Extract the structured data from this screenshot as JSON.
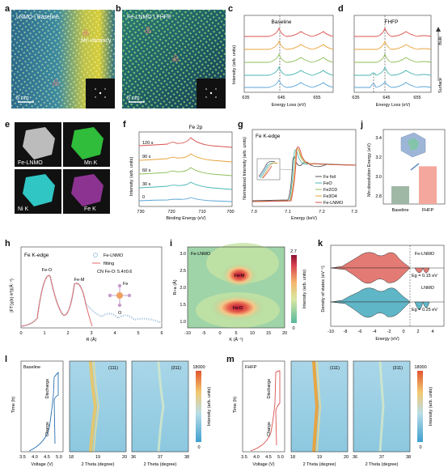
{
  "panels": {
    "a": {
      "label": "a",
      "caption": "LNMO | Baseline",
      "annotation": "Mn vacancy",
      "scale": "5 nm"
    },
    "b": {
      "label": "b",
      "caption": "Fe-LNMO | FHFP",
      "scale": "5 nm"
    },
    "c": {
      "label": "c",
      "title": "Baseline",
      "ylabel": "Intensity (arb. units)",
      "xlabel": "Energy Loss (eV)",
      "xticks": [
        "635",
        "645",
        "655"
      ]
    },
    "d": {
      "label": "d",
      "title": "FHFP",
      "xlabel": "Energy Loss (eV)",
      "xticks": [
        "635",
        "645",
        "655"
      ],
      "bulk": "Bulk",
      "surface": "Surface"
    },
    "e": {
      "label": "e",
      "maps": [
        "Fe-LNMO",
        "Mn K",
        "Ni K",
        "Fe K"
      ]
    },
    "f": {
      "label": "f",
      "title": "Fe 2p",
      "ylabel": "Intensity (arb. units)",
      "xlabel": "Binding Energy (eV)",
      "xticks": [
        "730",
        "720",
        "710",
        "700"
      ],
      "times": [
        "120 s",
        "90 s",
        "60 s",
        "30 s",
        "0"
      ]
    },
    "g": {
      "label": "g",
      "title": "Fe K-edge",
      "ylabel": "Normalized Intensity (arb. units)",
      "xlabel": "Energy (keV)",
      "xticks": [
        "7.0",
        "7.1",
        "7.2",
        "7.3"
      ],
      "legend": [
        "Fe foil",
        "FeO",
        "Fe2O3",
        "Fe3O4",
        "Fe-LNMO"
      ]
    },
    "j": {
      "label": "j",
      "ylabel": "Mn dissolution Energy (eV)",
      "yticks": [
        "3.4",
        "3.2",
        "3.0",
        "2.8"
      ],
      "categories": [
        "Baseline",
        "FHFP"
      ]
    },
    "h": {
      "label": "h",
      "title": "Fe K-edge",
      "ylabel": "|FT(χ(k)·k³)|(Å⁻⁴)",
      "xlabel": "R (Å)",
      "xticks": [
        "0",
        "1",
        "2",
        "3",
        "4",
        "5",
        "6"
      ],
      "legend": [
        "Fe-LNMO",
        "fitting"
      ],
      "cn": "CN Fe-O: 5.4±0.6",
      "peaks": [
        "Fe-O",
        "Fe-M"
      ],
      "motif_center": "Fe",
      "motif_ligand": "O"
    },
    "i": {
      "label": "i",
      "title": "Fe-LNMO",
      "ylabel": "R+a (Å)",
      "xlabel": "K (Å⁻¹)",
      "xticks": [
        "-10",
        "-5",
        "0",
        "5",
        "10",
        "15",
        "20"
      ],
      "yticks": [
        "3.0",
        "2.5",
        "2.0",
        "1.5",
        "1.0"
      ],
      "cbar_label": "Intensity (arb. units)",
      "cbar_max": "2.7",
      "cbar_min": "0",
      "peaks": [
        "Fe-M",
        "Fe-O"
      ]
    },
    "k": {
      "label": "k",
      "ylabel": "Density of states (eV⁻¹)",
      "xlabel": "Energy (eV)",
      "xticks": [
        "-10",
        "-8",
        "-6",
        "-4",
        "-2",
        "0",
        "2",
        "4"
      ],
      "series": [
        "Fe-LNMO",
        "LNMO"
      ],
      "gaps": [
        "Eg = 0.15 eV",
        "Eg = 0.25 eV"
      ]
    },
    "l": {
      "label": "l",
      "title": "Baseline",
      "ylabel": "Time (h)",
      "xlabel1": "Voltage (V)",
      "xticks1": [
        "3.5",
        "4.0",
        "4.5",
        "5.0"
      ],
      "discharge": "Discharge",
      "charge": "Charge",
      "peak1": "(111)",
      "peak2": "(311)",
      "xlabel2": "2 Theta (degree)",
      "xticks2": [
        "18",
        "19",
        "20"
      ],
      "xticks3": [
        "36",
        "37",
        "38"
      ],
      "cbar_label": "Intensity (arb. units)",
      "cbar_max": "18000",
      "cbar_min": "0"
    },
    "m": {
      "label": "m",
      "title": "FHFP",
      "ylabel": "Time (h)",
      "xlabel1": "Voltage (V)",
      "xticks1": [
        "3.5",
        "4.0",
        "4.5",
        "5.0"
      ],
      "discharge": "Discharge",
      "charge": "Charge",
      "peak1": "(111)",
      "peak2": "(311)",
      "xlabel2": "2 Theta (degree)",
      "xticks2": [
        "18",
        "19",
        "20"
      ],
      "xticks3": [
        "36",
        "37",
        "38"
      ],
      "cbar_label": "Intensity (arb. units)",
      "cbar_max": "18000",
      "cbar_min": "0"
    }
  },
  "chart_data": [
    {
      "type": "line",
      "title": "Baseline",
      "xlabel": "Energy Loss (eV)",
      "ylabel": "Intensity (arb. units)",
      "note": "EELS Mn L-edge spectra, 5 stacked curves surface to bulk",
      "xlim": [
        635,
        660
      ]
    },
    {
      "type": "line",
      "title": "FHFP",
      "xlabel": "Energy Loss (eV)",
      "note": "EELS Mn L-edge spectra, 5 stacked curves surface to bulk",
      "xlim": [
        635,
        660
      ]
    },
    {
      "type": "line",
      "title": "Fe 2p",
      "xlabel": "Binding Energy (eV)",
      "ylabel": "Intensity (arb. units)",
      "series": [
        {
          "name": "120 s"
        },
        {
          "name": "90 s"
        },
        {
          "name": "60 s"
        },
        {
          "name": "30 s"
        },
        {
          "name": "0"
        }
      ],
      "xlim": [
        730,
        700
      ]
    },
    {
      "type": "line",
      "title": "Fe K-edge",
      "xlabel": "Energy (keV)",
      "ylabel": "Normalized Intensity (arb. units)",
      "series": [
        {
          "name": "Fe foil"
        },
        {
          "name": "FeO"
        },
        {
          "name": "Fe2O3"
        },
        {
          "name": "Fe3O4"
        },
        {
          "name": "Fe-LNMO"
        }
      ],
      "xlim": [
        7.0,
        7.3
      ]
    },
    {
      "type": "bar",
      "categories": [
        "Baseline",
        "FHFP"
      ],
      "values": [
        2.88,
        3.08
      ],
      "ylabel": "Mn dissolution Energy (eV)",
      "ylim": [
        2.7,
        3.45
      ]
    },
    {
      "type": "line",
      "title": "Fe K-edge",
      "xlabel": "R (Å)",
      "ylabel": "|FT(χ(k)·k³)|(Å⁻⁴)",
      "series": [
        {
          "name": "Fe-LNMO"
        },
        {
          "name": "fitting"
        }
      ],
      "xlim": [
        0,
        6
      ]
    },
    {
      "type": "heatmap",
      "title": "Fe-LNMO",
      "xlabel": "K (Å⁻¹)",
      "ylabel": "R+a (Å)",
      "xlim": [
        -10,
        20
      ],
      "ylim": [
        1.0,
        3.0
      ],
      "zlim": [
        0,
        2.7
      ]
    },
    {
      "type": "area",
      "xlabel": "Energy (eV)",
      "ylabel": "Density of states (eV⁻¹)",
      "series": [
        {
          "name": "Fe-LNMO"
        },
        {
          "name": "LNMO"
        }
      ],
      "xlim": [
        -10,
        5
      ]
    },
    {
      "type": "heatmap",
      "title": "Baseline",
      "xlabel": "2 Theta (degree)",
      "ylabel": "Time (h)",
      "zlim": [
        0,
        18000
      ]
    },
    {
      "type": "heatmap",
      "title": "FHFP",
      "xlabel": "2 Theta (degree)",
      "ylabel": "Time (h)",
      "zlim": [
        0,
        18000
      ]
    }
  ],
  "colors": {
    "red": "#d9534f",
    "orange": "#e8a33c",
    "green": "#8fbf5a",
    "teal": "#49b6b0",
    "blue": "#5aa6d6",
    "bar_base": "#9fb8a6",
    "bar_fhfp": "#f4a79d"
  }
}
